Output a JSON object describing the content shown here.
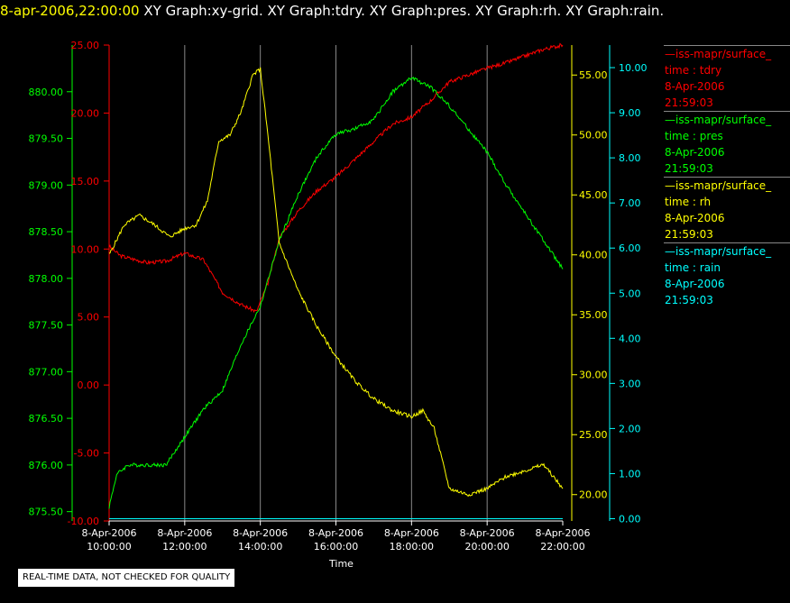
{
  "header": {
    "timestamp": "8-apr-2006,22:00:00",
    "titles": [
      "XY Graph:xy-grid.",
      "XY Graph:tdry.",
      "XY Graph:pres.",
      "XY Graph:rh.",
      "XY Graph:rain."
    ]
  },
  "notice": "REAL-TIME DATA, NOT CHECKED FOR QUALITY",
  "colors": {
    "tdry": "#ff0000",
    "pres": "#00ff00",
    "rh": "#ffff00",
    "rain": "#00ffff",
    "grid": "#888888"
  },
  "legend": [
    {
      "key": "tdry",
      "color": "#ff0000",
      "name": "—iss-mapr/surface_",
      "var": "time : tdry",
      "date": "8-Apr-2006",
      "time": "21:59:03"
    },
    {
      "key": "pres",
      "color": "#00ff00",
      "name": "—iss-mapr/surface_",
      "var": "time : pres",
      "date": "8-Apr-2006",
      "time": "21:59:03"
    },
    {
      "key": "rh",
      "color": "#ffff00",
      "name": "—iss-mapr/surface_",
      "var": "time : rh",
      "date": "8-Apr-2006",
      "time": "21:59:03"
    },
    {
      "key": "rain",
      "color": "#00ffff",
      "name": "—iss-mapr/surface_",
      "var": "time : rain",
      "date": "8-Apr-2006",
      "time": "21:59:03"
    }
  ],
  "chart_data": {
    "type": "line",
    "xlabel": "Time",
    "x_ticks": [
      {
        "date": "8-Apr-2006",
        "time": "10:00:00"
      },
      {
        "date": "8-Apr-2006",
        "time": "12:00:00"
      },
      {
        "date": "8-Apr-2006",
        "time": "14:00:00"
      },
      {
        "date": "8-Apr-2006",
        "time": "16:00:00"
      },
      {
        "date": "8-Apr-2006",
        "time": "18:00:00"
      },
      {
        "date": "8-Apr-2006",
        "time": "20:00:00"
      },
      {
        "date": "8-Apr-2006",
        "time": "22:00:00"
      }
    ],
    "x_hours": [
      10,
      12,
      14,
      16,
      18,
      20,
      22
    ],
    "axes": {
      "pres": {
        "color": "#00ff00",
        "ylim": [
          875.4,
          880.5
        ],
        "ticks": [
          "875.50",
          "876.00",
          "876.50",
          "877.00",
          "877.50",
          "878.00",
          "878.50",
          "879.00",
          "879.50",
          "880.00"
        ]
      },
      "tdry": {
        "color": "#ff0000",
        "ylim": [
          -10,
          25
        ],
        "ticks": [
          "-10.00",
          "-5.00",
          "0.00",
          "5.00",
          "10.00",
          "15.00",
          "20.00",
          "25.00"
        ]
      },
      "rh": {
        "color": "#ffff00",
        "ylim": [
          17.8,
          57.5
        ],
        "ticks": [
          "20.00",
          "25.00",
          "30.00",
          "35.00",
          "40.00",
          "45.00",
          "50.00",
          "55.00"
        ]
      },
      "rain": {
        "color": "#00ffff",
        "ylim": [
          -0.05,
          10.5
        ],
        "ticks": [
          "0.00",
          "1.00",
          "2.00",
          "3.00",
          "4.00",
          "5.00",
          "6.00",
          "7.00",
          "8.00",
          "9.00",
          "10.00"
        ]
      }
    },
    "series": [
      {
        "name": "tdry",
        "axis": "tdry",
        "x": [
          10.0,
          10.3,
          11.0,
          11.5,
          12.0,
          12.5,
          13.0,
          13.5,
          13.9,
          14.2,
          14.5,
          15.0,
          15.5,
          16.0,
          16.5,
          17.0,
          17.5,
          18.0,
          18.5,
          19.0,
          19.5,
          20.0,
          20.5,
          21.0,
          21.5,
          22.0
        ],
        "values": [
          10.2,
          9.5,
          9.0,
          9.1,
          9.7,
          9.2,
          6.8,
          5.9,
          5.4,
          7.5,
          10.8,
          12.8,
          14.3,
          15.3,
          16.6,
          17.9,
          19.2,
          19.7,
          20.9,
          22.3,
          22.8,
          23.3,
          23.7,
          24.2,
          24.7,
          25.0
        ]
      },
      {
        "name": "pres",
        "axis": "pres",
        "x": [
          10.0,
          10.2,
          10.5,
          11.0,
          11.5,
          12.0,
          12.5,
          13.0,
          13.5,
          14.0,
          14.5,
          15.0,
          15.5,
          16.0,
          16.5,
          17.0,
          17.5,
          18.0,
          18.5,
          19.0,
          19.5,
          20.0,
          20.5,
          21.0,
          21.5,
          22.0
        ],
        "values": [
          875.55,
          875.9,
          876.0,
          876.0,
          876.0,
          876.3,
          876.6,
          876.8,
          877.3,
          877.7,
          878.4,
          878.9,
          879.3,
          879.55,
          879.6,
          879.7,
          880.0,
          880.15,
          880.05,
          879.85,
          879.6,
          879.35,
          879.0,
          878.7,
          878.4,
          878.1
        ]
      },
      {
        "name": "rh",
        "axis": "rh",
        "x": [
          10.0,
          10.4,
          10.8,
          11.2,
          11.6,
          12.0,
          12.3,
          12.6,
          12.9,
          13.2,
          13.5,
          13.8,
          14.0,
          14.2,
          14.5,
          15.0,
          15.5,
          16.0,
          16.5,
          17.0,
          17.5,
          18.0,
          18.3,
          18.6,
          19.0,
          19.5,
          20.0,
          20.5,
          21.0,
          21.5,
          22.0
        ],
        "values": [
          40.0,
          42.5,
          43.3,
          42.5,
          41.5,
          42.2,
          42.5,
          44.5,
          49.5,
          50.0,
          52.0,
          55.0,
          55.5,
          50.0,
          41.0,
          37.0,
          34.0,
          31.5,
          29.5,
          28.0,
          27.0,
          26.5,
          27.0,
          25.5,
          20.5,
          20.0,
          20.5,
          21.5,
          22.0,
          22.5,
          20.5
        ]
      },
      {
        "name": "rain",
        "axis": "rain",
        "x": [
          10.0,
          22.0
        ],
        "values": [
          0.0,
          0.0
        ]
      }
    ]
  }
}
